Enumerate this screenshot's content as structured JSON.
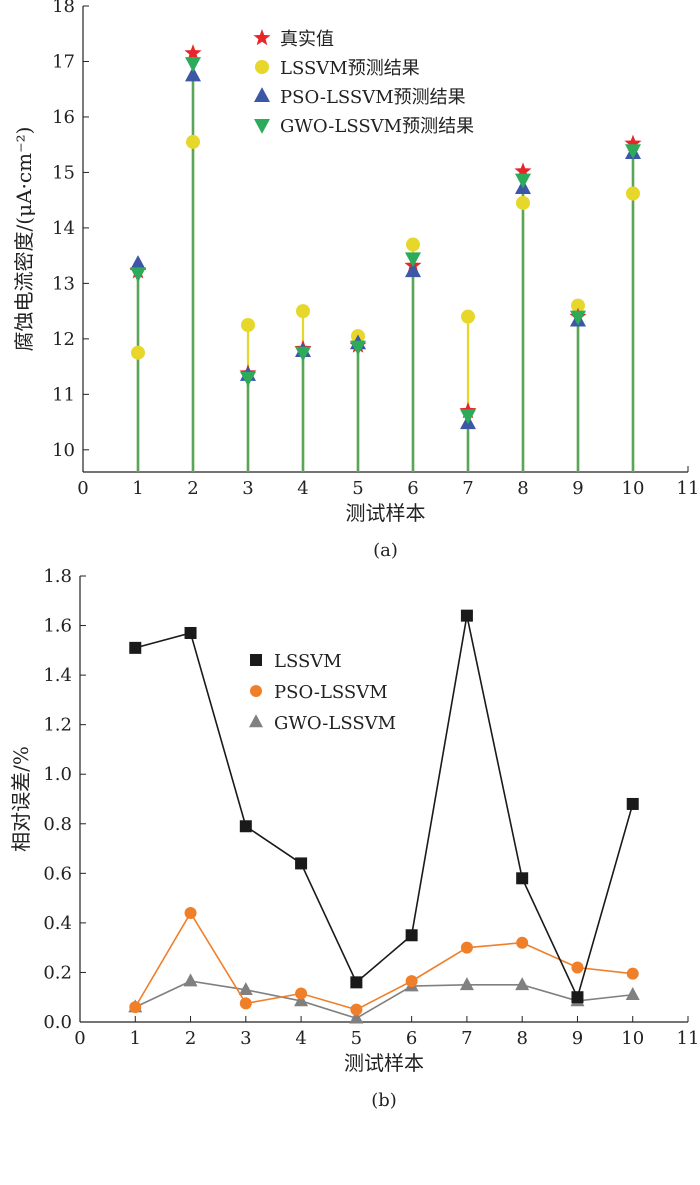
{
  "chart_data": [
    {
      "type": "scatter",
      "caption": "(a)",
      "xlabel": "测试样本",
      "ylabel": "腐蚀电流密度/(μA·cm⁻²)",
      "xlim": [
        0,
        11
      ],
      "ylim": [
        9.6,
        18
      ],
      "xticks": [
        "0",
        "1",
        "2",
        "3",
        "4",
        "5",
        "6",
        "7",
        "8",
        "9",
        "10",
        "11"
      ],
      "yticks": [
        "10",
        "11",
        "12",
        "13",
        "14",
        "15",
        "16",
        "17",
        "18"
      ],
      "legend_position": "top-center",
      "x": [
        1,
        2,
        3,
        4,
        5,
        6,
        7,
        8,
        9,
        10
      ],
      "series": [
        {
          "name": "真实值",
          "marker": "star",
          "color": "#e8262a",
          "values": [
            13.22,
            17.15,
            11.38,
            11.82,
            11.88,
            13.32,
            10.7,
            15.02,
            12.4,
            15.52
          ]
        },
        {
          "name": "LSSVM预测结果",
          "marker": "circle",
          "color": "#e6d72a",
          "values": [
            11.75,
            15.55,
            12.25,
            12.5,
            12.05,
            13.7,
            12.4,
            14.45,
            12.6,
            14.62
          ]
        },
        {
          "name": "PSO-LSSVM预测结果",
          "marker": "triangle-up",
          "color": "#3b57a6",
          "values": [
            13.35,
            16.75,
            11.35,
            11.78,
            11.92,
            13.22,
            10.48,
            14.72,
            12.33,
            15.35
          ]
        },
        {
          "name": "GWO-LSSVM预测结果",
          "marker": "triangle-down",
          "color": "#2eab5a",
          "values": [
            13.18,
            16.97,
            11.3,
            11.75,
            11.86,
            13.45,
            10.62,
            14.87,
            12.4,
            15.4
          ]
        }
      ],
      "stem_colors": {
        "lssvm": "#e6d72a",
        "gwo": "#5aa55a"
      }
    },
    {
      "type": "line",
      "caption": "(b)",
      "xlabel": "测试样本",
      "ylabel": "相对误差/%",
      "xlim": [
        0,
        11
      ],
      "ylim": [
        0,
        1.8
      ],
      "xticks": [
        "0",
        "1",
        "2",
        "3",
        "4",
        "5",
        "6",
        "7",
        "8",
        "9",
        "10",
        "11"
      ],
      "yticks": [
        "0.0",
        "0.2",
        "0.4",
        "0.6",
        "0.8",
        "1.0",
        "1.2",
        "1.4",
        "1.6",
        "1.8"
      ],
      "legend_position": "top-center",
      "x": [
        1,
        2,
        3,
        4,
        5,
        6,
        7,
        8,
        9,
        10
      ],
      "series": [
        {
          "name": "LSSVM",
          "marker": "square",
          "color": "#1a1a1a",
          "values": [
            1.51,
            1.57,
            0.79,
            0.64,
            0.16,
            0.35,
            1.64,
            0.58,
            0.1,
            0.88
          ]
        },
        {
          "name": "PSO-LSSVM",
          "marker": "circle",
          "color": "#f07f2a",
          "values": [
            0.06,
            0.44,
            0.075,
            0.115,
            0.05,
            0.165,
            0.3,
            0.32,
            0.22,
            0.195
          ]
        },
        {
          "name": "GWO-LSSVM",
          "marker": "triangle-up",
          "color": "#808080",
          "values": [
            0.06,
            0.165,
            0.13,
            0.085,
            0.015,
            0.145,
            0.15,
            0.15,
            0.085,
            0.11
          ]
        }
      ]
    }
  ]
}
